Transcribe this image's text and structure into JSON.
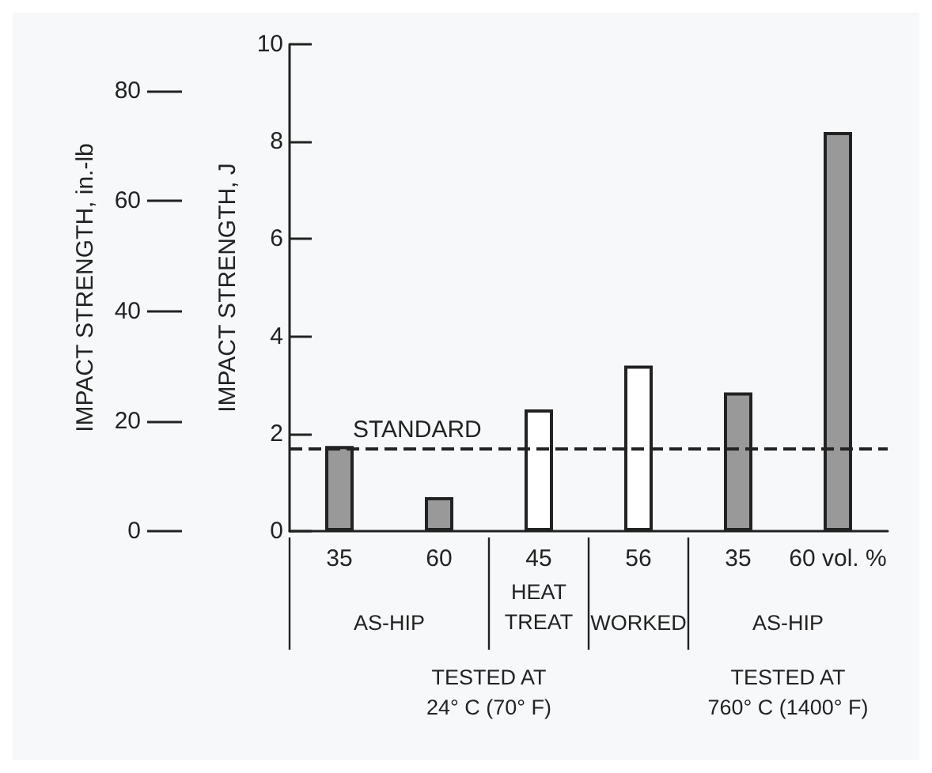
{
  "chart_data": {
    "type": "bar",
    "ylabel": "IMPACT STRENGTH, J",
    "y2label": "IMPACT STRENGTH, in.-lb",
    "categories": [
      "35",
      "60",
      "45",
      "56",
      "35",
      "60 vol. %"
    ],
    "values": [
      1.75,
      0.7,
      2.5,
      3.4,
      2.85,
      8.2
    ],
    "colors": [
      "#999999",
      "#999999",
      "#ffffff",
      "#ffffff",
      "#999999",
      "#999999"
    ],
    "ylim": [
      0,
      10
    ],
    "yticks": [
      0,
      2,
      4,
      6,
      8,
      10
    ],
    "y2lim": [
      0,
      88.5
    ],
    "y2ticks": [
      0,
      20,
      40,
      60,
      80
    ],
    "ref_lines": [
      {
        "axis": "y",
        "value": 1.7,
        "label": "STANDARD",
        "line_style": "dashed",
        "color": "#222222"
      }
    ],
    "annotations": [
      "AS-HIP",
      "HEAT\nTREAT",
      "WORKED",
      "AS-HIP",
      "TESTED AT\n24° C (70° F)",
      "TESTED AT\n760° C (1400° F)"
    ],
    "grid": false
  }
}
